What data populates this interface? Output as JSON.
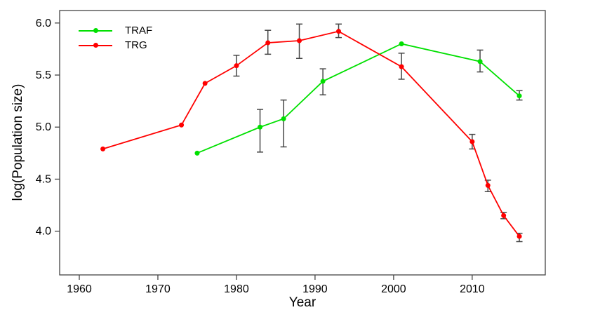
{
  "figure": {
    "background": "#ffffff"
  },
  "chart_data": {
    "type": "line",
    "title": "",
    "xlabel": "Year",
    "ylabel": "log(Population size)",
    "xlim": [
      1957.5,
      2019.3
    ],
    "ylim": [
      3.58,
      6.12
    ],
    "x_ticks": [
      1960,
      1970,
      1980,
      1990,
      2000,
      2010
    ],
    "x_tick_labels": [
      "1960",
      "1970",
      "1980",
      "1990",
      "2000",
      "2010"
    ],
    "y_ticks": [
      4.0,
      4.5,
      5.0,
      5.5,
      6.0
    ],
    "y_tick_labels": [
      "4.0",
      "4.5",
      "5.0",
      "5.5",
      "6.0"
    ],
    "grid": false,
    "legend_position": "top-left",
    "error_bar_color": "#474747",
    "axis_color": "#444444",
    "tick_label_color": "#000000",
    "series": [
      {
        "name": "TRAF",
        "color": "#00E000",
        "points": [
          {
            "x": 1975,
            "y": 4.75,
            "err_up": 0,
            "err_down": 0
          },
          {
            "x": 1983,
            "y": 5.0,
            "err_up": 0.17,
            "err_down": 0.24
          },
          {
            "x": 1986,
            "y": 5.08,
            "err_up": 0.18,
            "err_down": 0.27
          },
          {
            "x": 1991,
            "y": 5.44,
            "err_up": 0.12,
            "err_down": 0.13
          },
          {
            "x": 2001,
            "y": 5.8,
            "err_up": 0,
            "err_down": 0
          },
          {
            "x": 2011,
            "y": 5.63,
            "err_up": 0.11,
            "err_down": 0.1
          },
          {
            "x": 2016,
            "y": 5.3,
            "err_up": 0.05,
            "err_down": 0.04
          }
        ]
      },
      {
        "name": "TRG",
        "color": "#FF0000",
        "points": [
          {
            "x": 1963,
            "y": 4.79,
            "err_up": 0,
            "err_down": 0
          },
          {
            "x": 1973,
            "y": 5.02,
            "err_up": 0,
            "err_down": 0
          },
          {
            "x": 1976,
            "y": 5.42,
            "err_up": 0,
            "err_down": 0
          },
          {
            "x": 1980,
            "y": 5.59,
            "err_up": 0.1,
            "err_down": 0.1
          },
          {
            "x": 1984,
            "y": 5.81,
            "err_up": 0.12,
            "err_down": 0.11
          },
          {
            "x": 1988,
            "y": 5.83,
            "err_up": 0.16,
            "err_down": 0.17
          },
          {
            "x": 1993,
            "y": 5.92,
            "err_up": 0.07,
            "err_down": 0.06
          },
          {
            "x": 2001,
            "y": 5.58,
            "err_up": 0.13,
            "err_down": 0.12
          },
          {
            "x": 2010,
            "y": 4.86,
            "err_up": 0.07,
            "err_down": 0.07
          },
          {
            "x": 2012,
            "y": 4.44,
            "err_up": 0.05,
            "err_down": 0.06
          },
          {
            "x": 2014,
            "y": 4.15,
            "err_up": 0.03,
            "err_down": 0.03
          },
          {
            "x": 2016,
            "y": 3.95,
            "err_up": 0.03,
            "err_down": 0.05
          }
        ]
      }
    ]
  }
}
